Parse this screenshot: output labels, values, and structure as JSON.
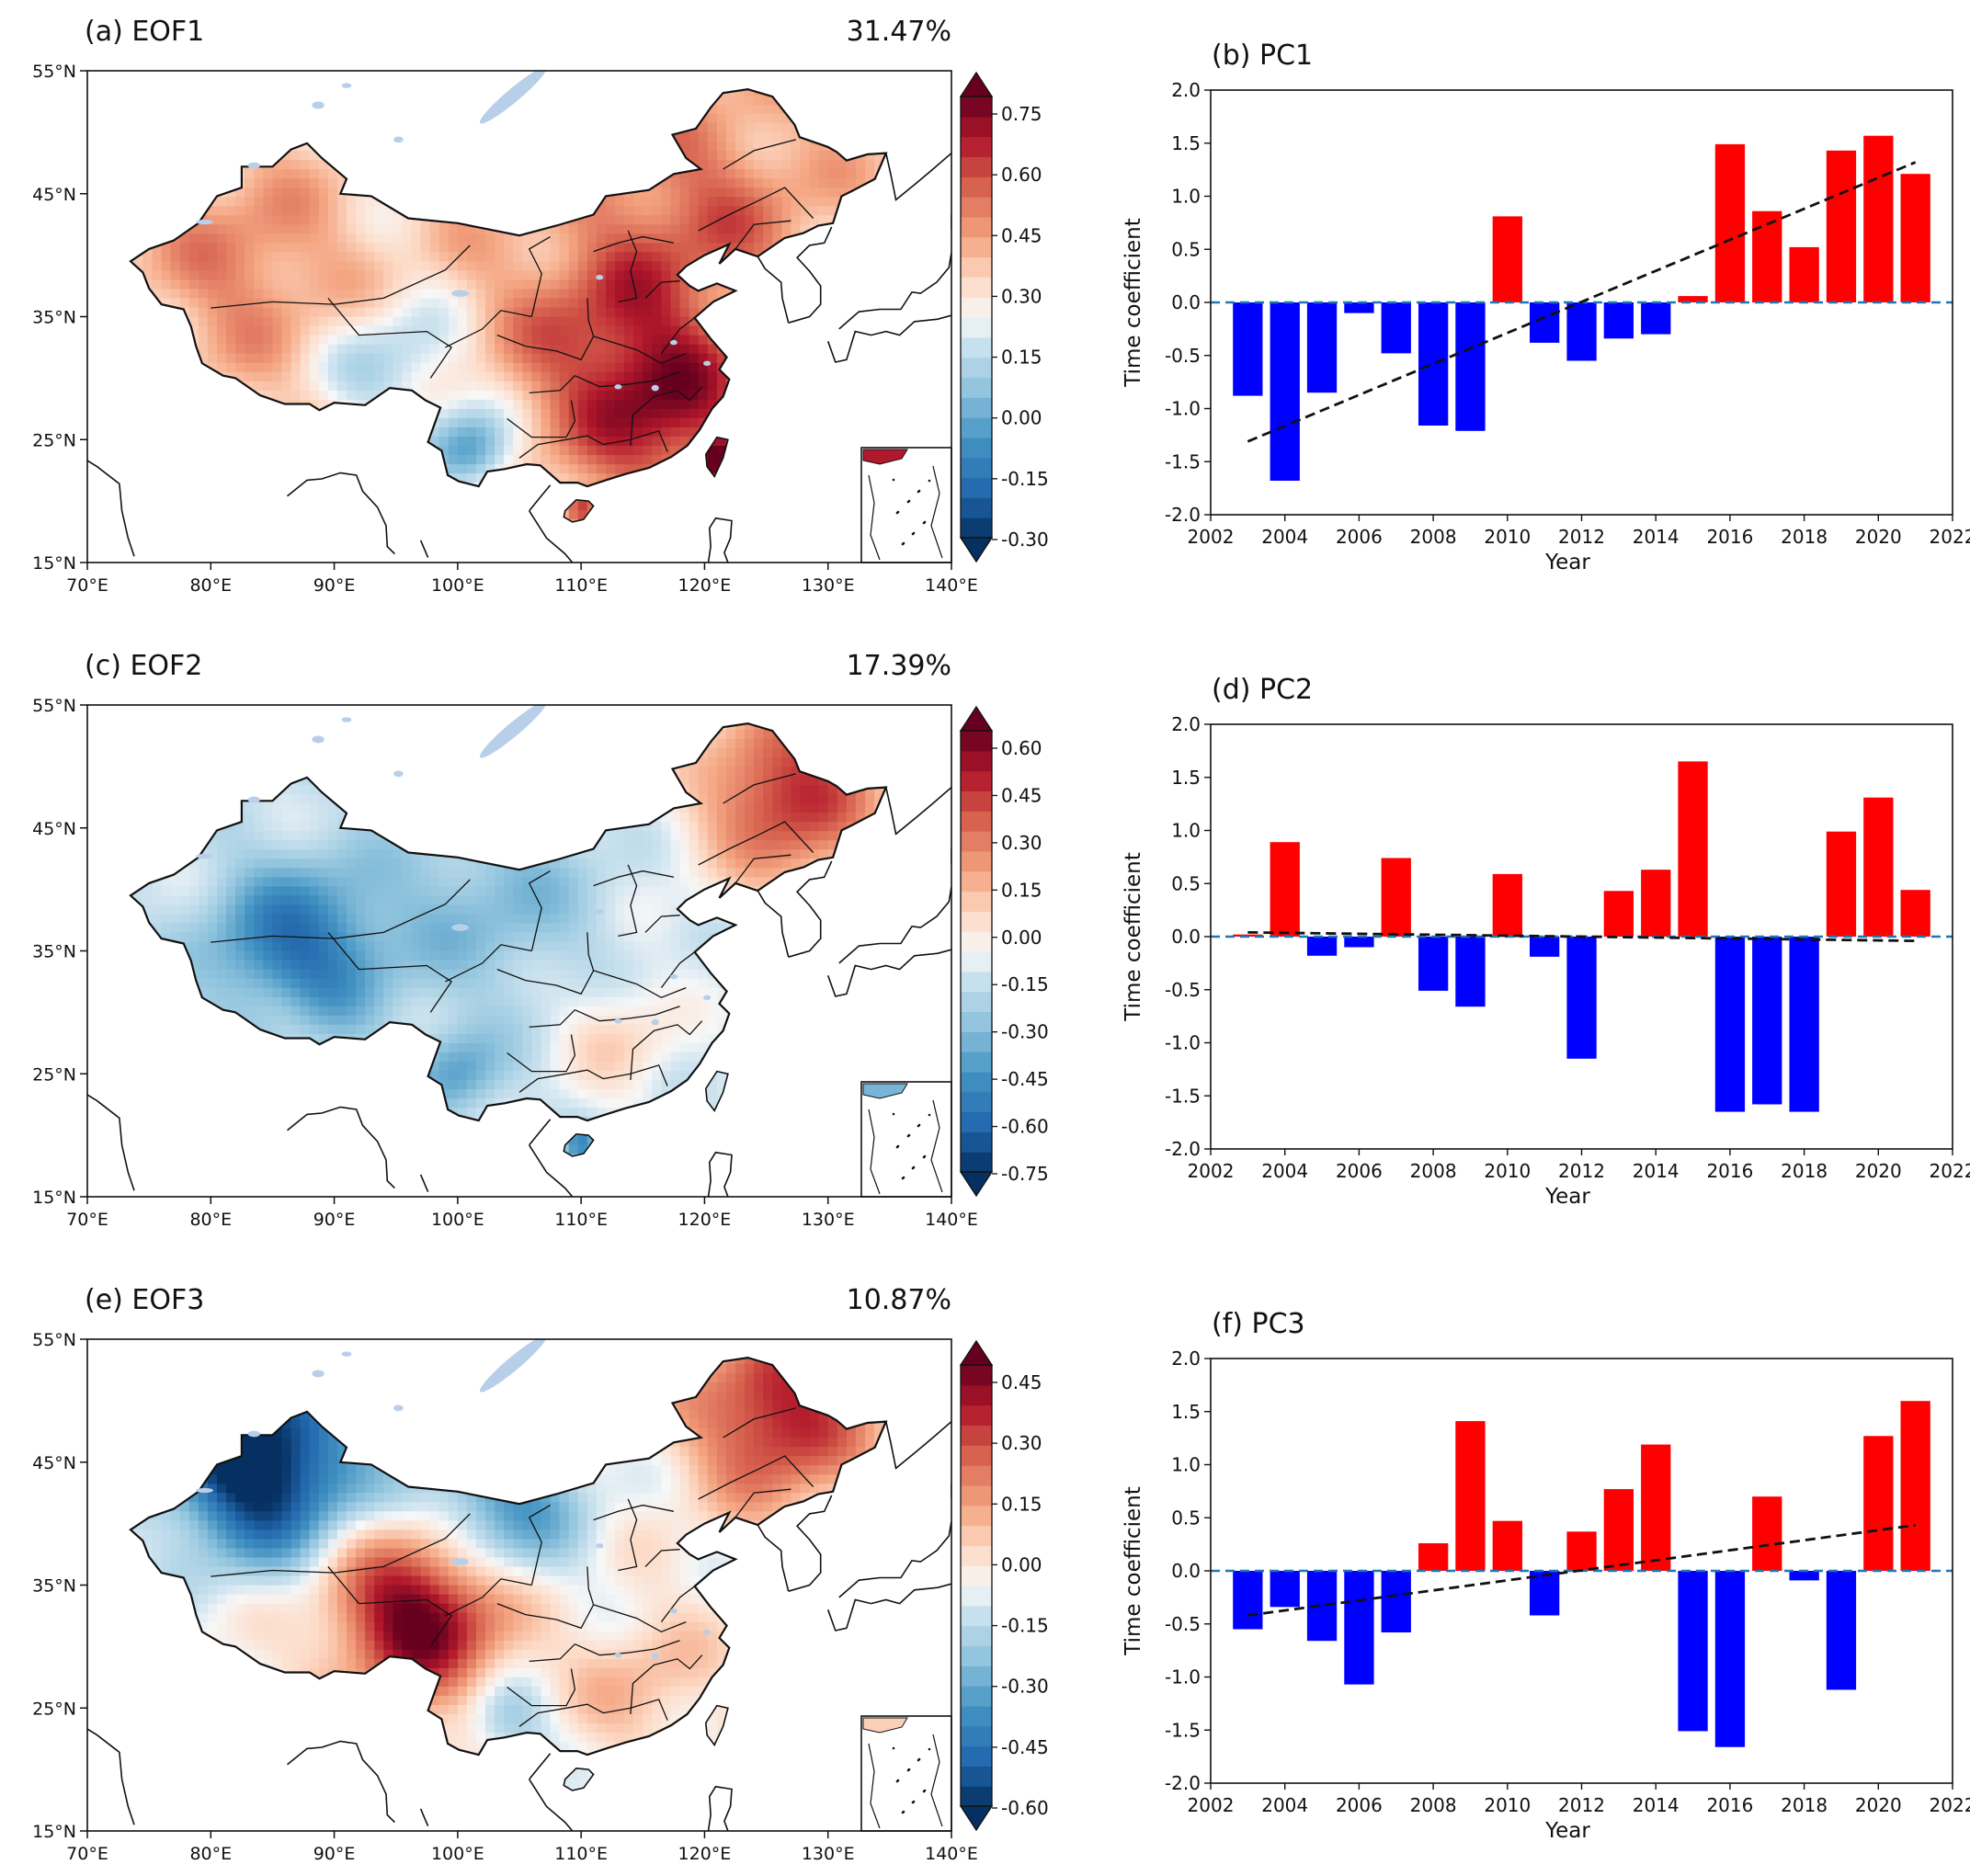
{
  "colors": {
    "positive_bar": "#ff0000",
    "negative_bar": "#0000ff",
    "zero_line": "#1f77b4",
    "trend_line": "#111111",
    "ocean": "#ffffff",
    "border": "#111111"
  },
  "maps": [
    {
      "panel": "(a) EOF1",
      "variance": "31.47%",
      "lat_ticks": [
        "55°N",
        "45°N",
        "35°N",
        "25°N",
        "15°N"
      ],
      "lon_ticks": [
        "70°E",
        "80°E",
        "90°E",
        "100°E",
        "110°E",
        "120°E",
        "130°E",
        "140°E"
      ],
      "colorbar_ticks": [
        "0.75",
        "0.60",
        "0.45",
        "0.30",
        "0.15",
        "0.00",
        "-0.15",
        "-0.30"
      ],
      "colorbar_range": [
        -0.3,
        0.75
      ],
      "pattern": "pos"
    },
    {
      "panel": "(c) EOF2",
      "variance": "17.39%",
      "lat_ticks": [
        "55°N",
        "45°N",
        "35°N",
        "25°N",
        "15°N"
      ],
      "lon_ticks": [
        "70°E",
        "80°E",
        "90°E",
        "100°E",
        "110°E",
        "120°E",
        "130°E",
        "140°E"
      ],
      "colorbar_ticks": [
        "0.60",
        "0.45",
        "0.30",
        "0.15",
        "0.00",
        "-0.15",
        "-0.30",
        "-0.45",
        "-0.60",
        "-0.75"
      ],
      "colorbar_range": [
        -0.75,
        0.6
      ],
      "pattern": "dipole_ne"
    },
    {
      "panel": "(e) EOF3",
      "variance": "10.87%",
      "lat_ticks": [
        "55°N",
        "45°N",
        "35°N",
        "25°N",
        "15°N"
      ],
      "lon_ticks": [
        "70°E",
        "80°E",
        "90°E",
        "100°E",
        "110°E",
        "120°E",
        "130°E",
        "140°E"
      ],
      "colorbar_ticks": [
        "0.45",
        "0.30",
        "0.15",
        "0.00",
        "-0.15",
        "-0.30",
        "-0.45",
        "-0.60"
      ],
      "colorbar_range": [
        -0.6,
        0.45
      ],
      "pattern": "tripole"
    }
  ],
  "chart_data": [
    {
      "type": "bar",
      "title": "(b) PC1",
      "xlabel": "Year",
      "ylabel": "Time coefficient",
      "x": [
        2003,
        2004,
        2005,
        2006,
        2007,
        2008,
        2009,
        2010,
        2011,
        2012,
        2013,
        2014,
        2015,
        2016,
        2017,
        2018,
        2019,
        2020,
        2021
      ],
      "values": [
        -0.88,
        -1.68,
        -0.85,
        -0.1,
        -0.48,
        -1.16,
        -1.21,
        0.81,
        -0.38,
        -0.55,
        -0.34,
        -0.3,
        0.06,
        1.49,
        0.86,
        0.52,
        1.43,
        1.57,
        1.21
      ],
      "trend": [
        [
          2003,
          -1.31
        ],
        [
          2021,
          1.32
        ]
      ],
      "xlim": [
        2002,
        2022
      ],
      "ylim": [
        -2.0,
        2.0
      ],
      "xticks": [
        "2002",
        "2004",
        "2006",
        "2008",
        "2010",
        "2012",
        "2014",
        "2016",
        "2018",
        "2020",
        "2022"
      ],
      "yticks": [
        "2.0",
        "1.5",
        "1.0",
        "0.5",
        "0.0",
        "-0.5",
        "-1.0",
        "-1.5",
        "-2.0"
      ]
    },
    {
      "type": "bar",
      "title": "(d) PC2",
      "xlabel": "Year",
      "ylabel": "Time coefficient",
      "x": [
        2003,
        2004,
        2005,
        2006,
        2007,
        2008,
        2009,
        2010,
        2011,
        2012,
        2013,
        2014,
        2015,
        2016,
        2017,
        2018,
        2019,
        2020,
        2021
      ],
      "values": [
        0.02,
        0.89,
        -0.18,
        -0.1,
        0.74,
        -0.51,
        -0.66,
        0.59,
        -0.19,
        -1.15,
        0.43,
        0.63,
        1.65,
        -1.65,
        -1.58,
        -1.65,
        0.99,
        1.31,
        0.44
      ],
      "trend": [
        [
          2003,
          0.04
        ],
        [
          2021,
          -0.04
        ]
      ],
      "xlim": [
        2002,
        2022
      ],
      "ylim": [
        -2.0,
        2.0
      ],
      "xticks": [
        "2002",
        "2004",
        "2006",
        "2008",
        "2010",
        "2012",
        "2014",
        "2016",
        "2018",
        "2020",
        "2022"
      ],
      "yticks": [
        "2.0",
        "1.5",
        "1.0",
        "0.5",
        "0.0",
        "-0.5",
        "-1.0",
        "-1.5",
        "-2.0"
      ]
    },
    {
      "type": "bar",
      "title": "(f) PC3",
      "xlabel": "Year",
      "ylabel": "Time coefficient",
      "x": [
        2003,
        2004,
        2005,
        2006,
        2007,
        2008,
        2009,
        2010,
        2011,
        2012,
        2013,
        2014,
        2015,
        2016,
        2017,
        2018,
        2019,
        2020,
        2021
      ],
      "values": [
        -0.55,
        -0.34,
        -0.66,
        -1.07,
        -0.58,
        0.26,
        1.41,
        0.47,
        -0.42,
        0.37,
        0.77,
        1.19,
        -1.51,
        -1.66,
        0.7,
        -0.09,
        -1.12,
        1.27,
        1.6
      ],
      "trend": [
        [
          2003,
          -0.42
        ],
        [
          2021,
          0.43
        ]
      ],
      "xlim": [
        2002,
        2022
      ],
      "ylim": [
        -2.0,
        2.0
      ],
      "xticks": [
        "2002",
        "2004",
        "2006",
        "2008",
        "2010",
        "2012",
        "2014",
        "2016",
        "2018",
        "2020",
        "2022"
      ],
      "yticks": [
        "2.0",
        "1.5",
        "1.0",
        "0.5",
        "0.0",
        "-0.5",
        "-1.0",
        "-1.5",
        "-2.0"
      ]
    }
  ]
}
